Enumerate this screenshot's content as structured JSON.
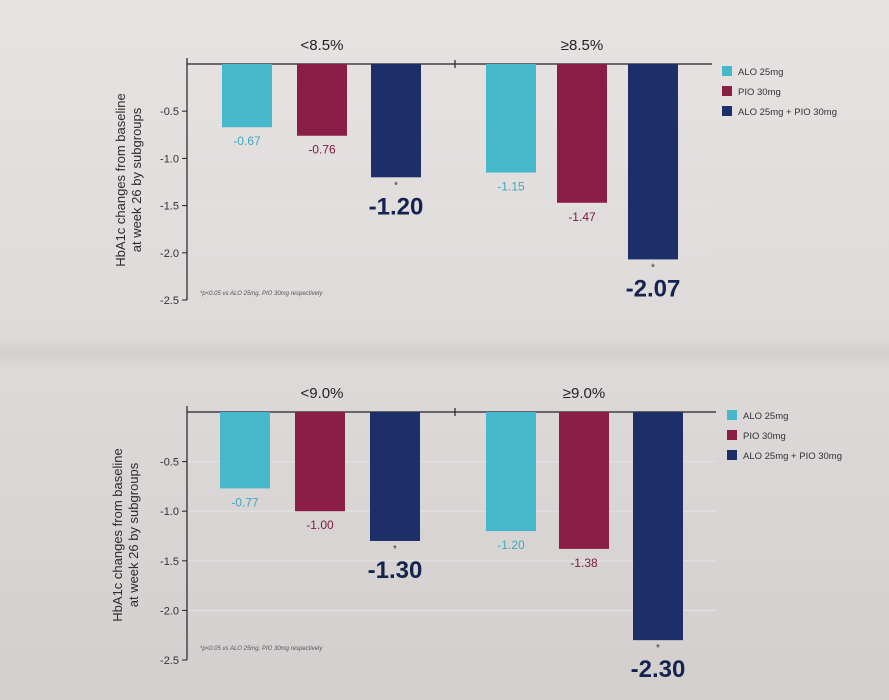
{
  "chart_data": [
    {
      "type": "bar",
      "ylabel": "HbA1c changes from baseline at week 26 by subgroups",
      "ylabel_lines": [
        "HbA1c changes from baseline",
        "at week 26 by subgroups"
      ],
      "ylim": [
        -2.5,
        0
      ],
      "yticks": [
        "-0.5",
        "-1.0",
        "-1.5",
        "-2.0",
        "-2.5"
      ],
      "grid": true,
      "legend_position": "top-right",
      "categories": [
        "<8.5%",
        "≥8.5%"
      ],
      "series": [
        {
          "name": "ALO 25mg",
          "color": "#45b8cc",
          "values": [
            -0.67,
            -1.15
          ],
          "labels": [
            "-0.67",
            "-1.15"
          ],
          "label_color": "#3fa9bd"
        },
        {
          "name": "PIO 30mg",
          "color": "#8b1e47",
          "values": [
            -0.76,
            -1.47
          ],
          "labels": [
            "-0.76",
            "-1.47"
          ],
          "label_color": "#7c1a3f"
        },
        {
          "name": "ALO 25mg + PIO 30mg",
          "color": "#1c2f68",
          "values": [
            -1.2,
            -2.07
          ],
          "labels": [
            "-1.20",
            "-2.07"
          ],
          "label_color": "#15244f",
          "emphasis": true,
          "marker": "*"
        }
      ],
      "footnote": "*p<0.05 vs ALO 25mg, PIO 30mg respectively"
    },
    {
      "type": "bar",
      "ylabel": "HbA1c changes from baseline at week 26 by subgroups",
      "ylabel_lines": [
        "HbA1c changes from baseline",
        "at week 26 by subgroups"
      ],
      "ylim": [
        -2.5,
        0
      ],
      "yticks": [
        "-0.5",
        "-1.0",
        "-1.5",
        "-2.0",
        "-2.5"
      ],
      "grid": true,
      "legend_position": "top-right",
      "categories": [
        "<9.0%",
        "≥9.0%"
      ],
      "series": [
        {
          "name": "ALO 25mg",
          "color": "#45b8cc",
          "values": [
            -0.77,
            -1.2
          ],
          "labels": [
            "-0.77",
            "-1.20"
          ],
          "label_color": "#3fa9bd"
        },
        {
          "name": "PIO 30mg",
          "color": "#8b1e47",
          "values": [
            -1.0,
            -1.38
          ],
          "labels": [
            "-1.00",
            "-1.38"
          ],
          "label_color": "#7c1a3f"
        },
        {
          "name": "ALO 25mg + PIO 30mg",
          "color": "#1c2f68",
          "values": [
            -1.3,
            -2.3
          ],
          "labels": [
            "-1.30",
            "-2.30"
          ],
          "label_color": "#15244f",
          "emphasis": true,
          "marker": "*"
        }
      ],
      "footnote": "*p<0.05 vs ALO 25mg, PIO 30mg respectively"
    }
  ]
}
